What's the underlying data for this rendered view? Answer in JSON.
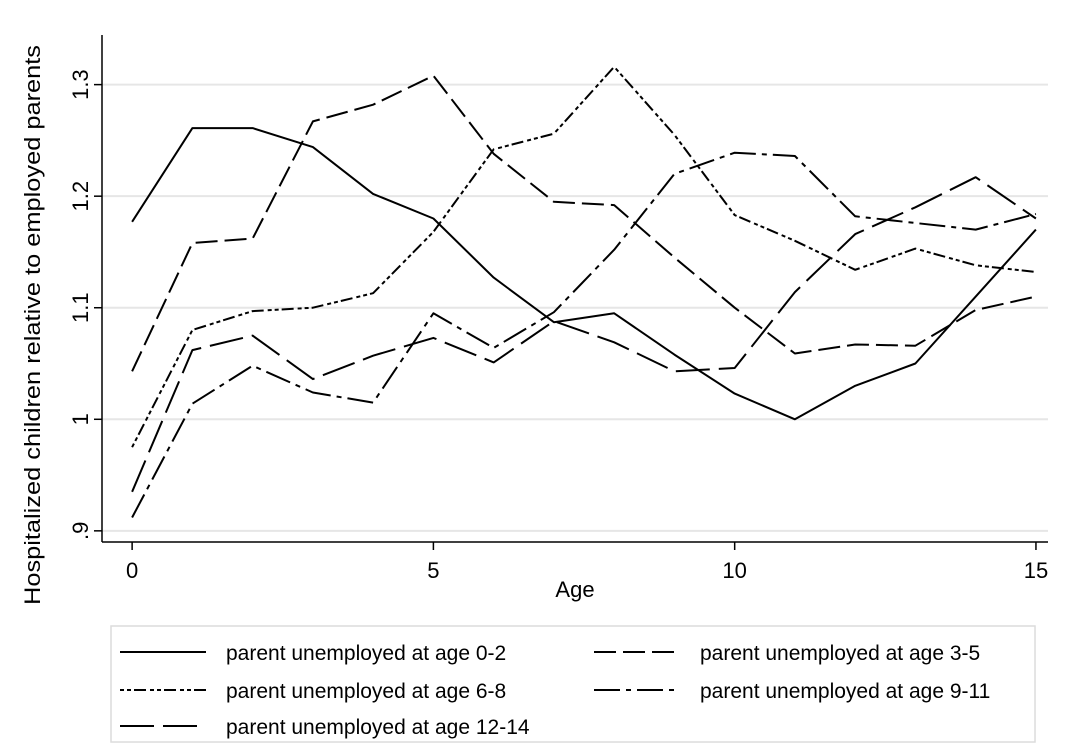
{
  "chart_data": {
    "type": "line",
    "title": "",
    "xlabel": "Age",
    "ylabel": "Hospitalized children relative to employed parents",
    "xlim": [
      -0.5,
      15.2
    ],
    "ylim": [
      0.89,
      1.34
    ],
    "xticks": [
      0,
      5,
      10,
      15
    ],
    "xtick_labels": [
      "0",
      "5",
      "10",
      "15"
    ],
    "yticks": [
      0.9,
      1.0,
      1.1,
      1.2,
      1.3
    ],
    "ytick_labels": [
      ".9",
      "1",
      "1.1",
      "1.2",
      "1.3"
    ],
    "grid": "horizontal",
    "legend_position": "bottom",
    "x": [
      0,
      1,
      2,
      3,
      4,
      5,
      6,
      7,
      8,
      9,
      10,
      11,
      12,
      13,
      14,
      15
    ],
    "series": [
      {
        "name": "parent unemployed at age 0-2",
        "dash": "solid",
        "values": [
          1.177,
          1.261,
          1.261,
          1.244,
          1.202,
          1.18,
          1.127,
          1.087,
          1.095,
          1.058,
          1.023,
          1.0,
          1.03,
          1.05,
          1.11,
          1.17
        ]
      },
      {
        "name": "parent unemployed at age 3-5",
        "dash": "dash",
        "values": [
          1.043,
          1.158,
          1.162,
          1.267,
          1.282,
          1.308,
          1.238,
          1.195,
          1.192,
          1.145,
          1.1,
          1.059,
          1.067,
          1.066,
          1.098,
          1.11
        ]
      },
      {
        "name": "parent unemployed at age 6-8",
        "dash": "dashdotdot",
        "values": [
          0.975,
          1.08,
          1.097,
          1.1,
          1.113,
          1.168,
          1.242,
          1.256,
          1.316,
          1.255,
          1.183,
          1.16,
          1.134,
          1.153,
          1.138,
          1.132
        ]
      },
      {
        "name": "parent unemployed at age 9-11",
        "dash": "dashdot",
        "values": [
          0.912,
          1.014,
          1.048,
          1.024,
          1.015,
          1.095,
          1.064,
          1.096,
          1.152,
          1.22,
          1.239,
          1.236,
          1.182,
          1.176,
          1.17,
          1.184
        ]
      },
      {
        "name": "parent unemployed at age 12-14",
        "dash": "longdash",
        "values": [
          0.935,
          1.062,
          1.075,
          1.036,
          1.057,
          1.073,
          1.051,
          1.088,
          1.069,
          1.043,
          1.046,
          1.114,
          1.166,
          1.19,
          1.217,
          1.18
        ]
      }
    ]
  }
}
